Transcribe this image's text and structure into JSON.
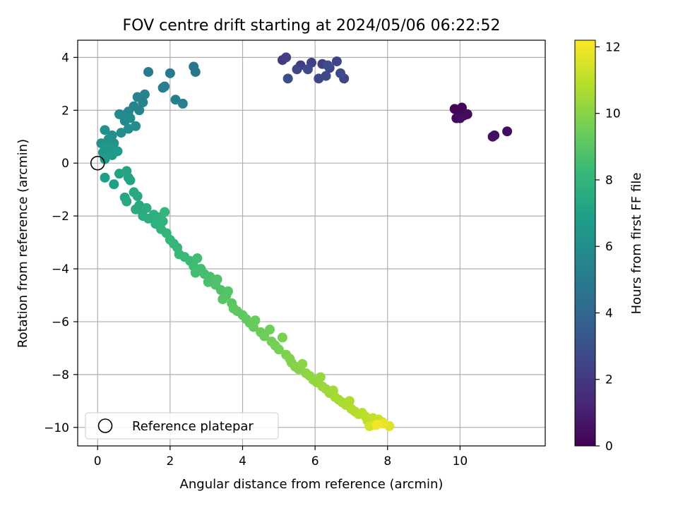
{
  "chart_data": {
    "type": "scatter",
    "title": "FOV centre drift starting at 2024/05/06 06:22:52",
    "xlabel": "Angular distance from reference (arcmin)",
    "ylabel": "Rotation from reference (arcmin)",
    "xlim": [
      -0.55,
      12.35
    ],
    "ylim": [
      -10.7,
      4.65
    ],
    "xticks": [
      0,
      2,
      4,
      6,
      8,
      10
    ],
    "yticks": [
      -10,
      -8,
      -6,
      -4,
      -2,
      0,
      2,
      4
    ],
    "tick_labels_x": [
      "0",
      "2",
      "4",
      "6",
      "8",
      "10"
    ],
    "tick_labels_y": [
      "−10",
      "−8",
      "−6",
      "−4",
      "−2",
      "0",
      "2",
      "4"
    ],
    "grid": true,
    "colormap": "viridis",
    "colorbar": {
      "label": "Hours from first FF file",
      "range": [
        0,
        12.2
      ],
      "ticks": [
        0,
        2,
        4,
        6,
        8,
        10,
        12
      ],
      "tick_labels": [
        "0",
        "2",
        "4",
        "6",
        "8",
        "10",
        "12"
      ]
    },
    "legend": {
      "position": "lower-left",
      "entries": [
        {
          "label": "Reference platepar",
          "marker": "open-circle"
        }
      ]
    },
    "reference_point": {
      "x": 0,
      "y": 0
    },
    "point_columns": [
      "x",
      "y",
      "hours"
    ],
    "points": [
      [
        10.0,
        2.0,
        0.05
      ],
      [
        10.1,
        1.8,
        0.1
      ],
      [
        9.85,
        2.05,
        0.15
      ],
      [
        10.05,
        2.1,
        0.2
      ],
      [
        9.9,
        1.7,
        0.25
      ],
      [
        10.2,
        1.85,
        0.3
      ],
      [
        10.0,
        1.7,
        0.35
      ],
      [
        11.3,
        1.2,
        0.4
      ],
      [
        10.9,
        1.0,
        0.45
      ],
      [
        10.95,
        1.05,
        0.5
      ],
      [
        5.1,
        3.9,
        2.2
      ],
      [
        5.2,
        4.0,
        2.25
      ],
      [
        5.6,
        3.7,
        2.3
      ],
      [
        5.9,
        3.8,
        2.35
      ],
      [
        6.2,
        3.75,
        2.4
      ],
      [
        6.4,
        3.6,
        2.45
      ],
      [
        6.6,
        3.85,
        2.5
      ],
      [
        6.8,
        3.2,
        2.55
      ],
      [
        5.5,
        3.55,
        2.6
      ],
      [
        6.1,
        3.2,
        2.65
      ],
      [
        6.3,
        3.3,
        2.7
      ],
      [
        6.7,
        3.4,
        2.75
      ],
      [
        5.8,
        3.55,
        2.8
      ],
      [
        6.35,
        3.7,
        2.85
      ],
      [
        5.25,
        3.2,
        2.9
      ],
      [
        2.65,
        3.65,
        4.8
      ],
      [
        2.7,
        3.45,
        4.9
      ],
      [
        2.0,
        3.4,
        5.0
      ],
      [
        1.4,
        3.45,
        5.1
      ],
      [
        1.85,
        2.9,
        5.15
      ],
      [
        1.8,
        2.85,
        5.2
      ],
      [
        2.15,
        2.4,
        5.25
      ],
      [
        2.35,
        2.25,
        5.3
      ],
      [
        1.3,
        2.6,
        5.35
      ],
      [
        1.1,
        2.5,
        5.4
      ],
      [
        1.25,
        2.3,
        5.45
      ],
      [
        1.0,
        2.15,
        5.5
      ],
      [
        1.15,
        2.0,
        5.55
      ],
      [
        0.85,
        1.95,
        5.6
      ],
      [
        0.7,
        1.8,
        5.7
      ],
      [
        0.6,
        1.85,
        5.75
      ],
      [
        0.9,
        1.7,
        5.8
      ],
      [
        0.75,
        1.6,
        5.85
      ],
      [
        1.05,
        1.4,
        5.9
      ],
      [
        0.85,
        1.3,
        5.95
      ],
      [
        0.65,
        1.15,
        6.0
      ],
      [
        0.4,
        1.05,
        6.05
      ],
      [
        0.2,
        1.25,
        6.1
      ],
      [
        0.3,
        0.9,
        6.15
      ],
      [
        0.45,
        0.75,
        6.2
      ],
      [
        0.1,
        0.75,
        6.25
      ],
      [
        0.2,
        0.55,
        6.3
      ],
      [
        0.35,
        0.5,
        6.35
      ],
      [
        0.15,
        0.4,
        6.4
      ],
      [
        0.25,
        0.3,
        6.45
      ],
      [
        0.4,
        0.3,
        6.5
      ],
      [
        0.3,
        0.6,
        6.55
      ],
      [
        0.55,
        0.45,
        6.6
      ],
      [
        0.2,
        0.15,
        6.65
      ],
      [
        0.2,
        -0.55,
        6.8
      ],
      [
        0.45,
        -0.8,
        6.9
      ],
      [
        0.6,
        -0.4,
        7.0
      ],
      [
        0.85,
        -0.55,
        7.05
      ],
      [
        0.9,
        -0.65,
        7.1
      ],
      [
        0.8,
        -0.3,
        7.15
      ],
      [
        0.75,
        -1.3,
        7.2
      ],
      [
        0.8,
        -1.45,
        7.25
      ],
      [
        1.0,
        -1.1,
        7.3
      ],
      [
        1.1,
        -1.25,
        7.35
      ],
      [
        1.15,
        -1.6,
        7.4
      ],
      [
        1.05,
        -1.75,
        7.45
      ],
      [
        1.2,
        -1.8,
        7.5
      ],
      [
        1.35,
        -1.7,
        7.55
      ],
      [
        1.25,
        -2.0,
        7.6
      ],
      [
        1.4,
        -2.1,
        7.65
      ],
      [
        1.55,
        -1.95,
        7.7
      ],
      [
        1.7,
        -2.05,
        7.75
      ],
      [
        1.8,
        -2.2,
        7.8
      ],
      [
        1.6,
        -2.3,
        7.85
      ],
      [
        1.75,
        -2.5,
        7.9
      ],
      [
        1.9,
        -2.65,
        7.95
      ],
      [
        1.85,
        -1.85,
        8.0
      ],
      [
        2.0,
        -2.9,
        8.05
      ],
      [
        2.1,
        -3.05,
        8.1
      ],
      [
        2.2,
        -3.2,
        8.15
      ],
      [
        2.25,
        -3.45,
        8.2
      ],
      [
        2.4,
        -3.55,
        8.25
      ],
      [
        2.55,
        -3.7,
        8.3
      ],
      [
        2.65,
        -3.9,
        8.35
      ],
      [
        2.75,
        -3.6,
        8.4
      ],
      [
        2.85,
        -4.0,
        8.45
      ],
      [
        2.7,
        -4.15,
        8.5
      ],
      [
        2.95,
        -4.2,
        8.55
      ],
      [
        3.1,
        -4.3,
        8.6
      ],
      [
        3.05,
        -4.5,
        8.65
      ],
      [
        3.25,
        -4.6,
        8.7
      ],
      [
        3.3,
        -4.4,
        8.75
      ],
      [
        3.4,
        -4.8,
        8.8
      ],
      [
        3.55,
        -5.0,
        8.85
      ],
      [
        3.6,
        -4.85,
        8.9
      ],
      [
        3.45,
        -5.15,
        8.95
      ],
      [
        3.7,
        -5.3,
        9.0
      ],
      [
        3.75,
        -5.5,
        9.05
      ],
      [
        3.85,
        -5.6,
        9.1
      ],
      [
        4.0,
        -5.75,
        9.15
      ],
      [
        4.1,
        -5.9,
        9.2
      ],
      [
        4.2,
        -6.05,
        9.25
      ],
      [
        4.3,
        -6.2,
        9.3
      ],
      [
        4.35,
        -5.95,
        9.35
      ],
      [
        4.5,
        -6.4,
        9.4
      ],
      [
        4.6,
        -6.55,
        9.45
      ],
      [
        4.75,
        -6.3,
        9.5
      ],
      [
        4.8,
        -6.75,
        9.55
      ],
      [
        4.9,
        -6.9,
        9.6
      ],
      [
        5.0,
        -7.05,
        9.65
      ],
      [
        5.1,
        -6.6,
        9.7
      ],
      [
        5.2,
        -7.25,
        9.75
      ],
      [
        5.3,
        -7.4,
        9.8
      ],
      [
        5.35,
        -7.55,
        9.85
      ],
      [
        5.45,
        -7.7,
        9.9
      ],
      [
        5.55,
        -7.8,
        9.95
      ],
      [
        5.65,
        -7.6,
        10.0
      ],
      [
        5.75,
        -7.95,
        10.05
      ],
      [
        5.85,
        -8.05,
        10.1
      ],
      [
        5.95,
        -8.2,
        10.15
      ],
      [
        6.05,
        -8.3,
        10.2
      ],
      [
        6.15,
        -8.1,
        10.25
      ],
      [
        6.2,
        -8.45,
        10.3
      ],
      [
        6.3,
        -8.55,
        10.35
      ],
      [
        6.4,
        -8.7,
        10.4
      ],
      [
        6.5,
        -8.6,
        10.45
      ],
      [
        6.55,
        -8.85,
        10.5
      ],
      [
        6.65,
        -8.95,
        10.55
      ],
      [
        6.75,
        -9.05,
        10.6
      ],
      [
        6.85,
        -9.15,
        10.65
      ],
      [
        6.95,
        -9.0,
        10.7
      ],
      [
        7.0,
        -9.3,
        10.75
      ],
      [
        7.1,
        -9.4,
        10.8
      ],
      [
        7.2,
        -9.5,
        10.85
      ],
      [
        7.3,
        -9.45,
        10.9
      ],
      [
        7.4,
        -9.6,
        10.95
      ],
      [
        7.45,
        -9.75,
        11.0
      ],
      [
        7.55,
        -9.85,
        11.05
      ],
      [
        7.6,
        -9.65,
        11.1
      ],
      [
        7.65,
        -9.9,
        11.15
      ],
      [
        7.75,
        -9.7,
        11.2
      ],
      [
        7.85,
        -9.8,
        11.3
      ],
      [
        7.5,
        -9.95,
        11.4
      ],
      [
        8.05,
        -9.95,
        11.6
      ],
      [
        7.9,
        -9.85,
        11.8
      ],
      [
        7.7,
        -9.9,
        12.0
      ]
    ]
  }
}
